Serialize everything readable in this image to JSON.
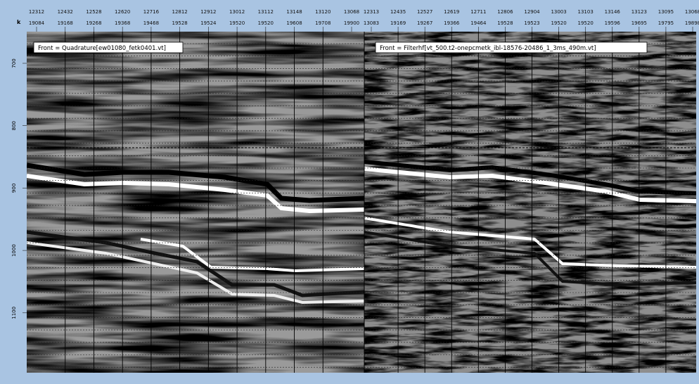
{
  "header": {
    "corner_label": "k",
    "left_panel": {
      "row1": [
        "12312",
        "12432",
        "12528",
        "12620",
        "12716",
        "12812",
        "12912",
        "13012",
        "13112",
        "13148",
        "13120",
        "13068"
      ],
      "row2": [
        "19084",
        "19168",
        "19268",
        "19368",
        "19468",
        "19528",
        "19524",
        "19520",
        "19520",
        "19608",
        "19708",
        "19900"
      ]
    },
    "right_panel": {
      "row1": [
        "12313",
        "12435",
        "12527",
        "12619",
        "12711",
        "12806",
        "12904",
        "13003",
        "13103",
        "13146",
        "13123",
        "13095",
        "13068"
      ],
      "row2": [
        "13083",
        "19169",
        "19267",
        "19366",
        "19464",
        "19528",
        "19523",
        "19520",
        "19520",
        "19596",
        "19695",
        "19795",
        "19898"
      ]
    }
  },
  "depth_labels": [
    "700",
    "800",
    "900",
    "1000",
    "1100"
  ],
  "panels": [
    {
      "label": "Front = Quadrature[ew01080_fetk0401.vt]"
    },
    {
      "label": "Front = Filterhf[vt_500.t2-onepcmetk_ibl-18576-20486_1_3ms_490m.vt]"
    }
  ]
}
